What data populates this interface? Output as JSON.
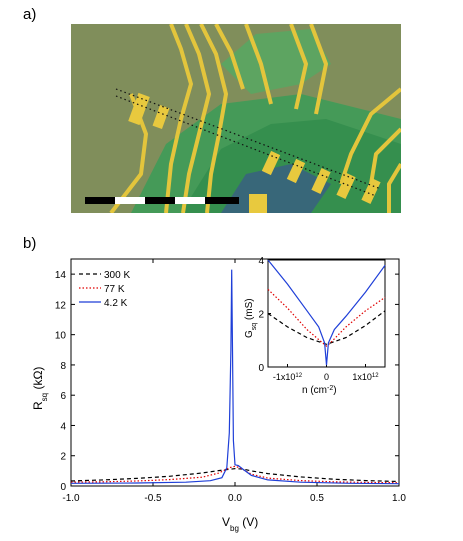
{
  "panels": {
    "a": "a)",
    "b": "b)"
  },
  "colors": {
    "substrate": "#7b8a56",
    "flake_green": "#3fa85a",
    "gold": "#e0c23c",
    "curve_300K": "#000000",
    "curve_77K": "#e00000",
    "curve_42K": "#1f3fd8"
  },
  "chart_data": [
    {
      "type": "line",
      "title": "",
      "xlabel": "V_bg (V)",
      "ylabel": "R_sq (kΩ)",
      "xlim": [
        -1.0,
        1.0
      ],
      "ylim": [
        0,
        15
      ],
      "x_ticks": [
        "-1.0",
        "-0.5",
        "0.0",
        "0.5",
        "1.0"
      ],
      "y_ticks": [
        "0",
        "2",
        "4",
        "6",
        "8",
        "10",
        "12",
        "14"
      ],
      "legend": {
        "placement": "top-left",
        "entries": [
          "300 K",
          "77 K",
          "4.2 K"
        ]
      },
      "series": [
        {
          "name": "300 K",
          "style": "dashed",
          "x": [
            -1.0,
            -0.8,
            -0.6,
            -0.4,
            -0.2,
            -0.1,
            0.0,
            0.05,
            0.1,
            0.2,
            0.4,
            0.6,
            0.8,
            1.0
          ],
          "y": [
            0.33,
            0.4,
            0.5,
            0.64,
            0.86,
            1.02,
            1.15,
            1.12,
            1.0,
            0.82,
            0.6,
            0.45,
            0.36,
            0.3
          ]
        },
        {
          "name": "77 K",
          "style": "dotted",
          "x": [
            -1.0,
            -0.8,
            -0.6,
            -0.4,
            -0.2,
            -0.1,
            -0.03,
            0.0,
            0.03,
            0.1,
            0.2,
            0.4,
            0.6,
            0.8,
            1.0
          ],
          "y": [
            0.25,
            0.28,
            0.33,
            0.42,
            0.58,
            0.85,
            1.22,
            1.3,
            1.2,
            0.78,
            0.52,
            0.36,
            0.28,
            0.24,
            0.22
          ]
        },
        {
          "name": "4.2 K",
          "style": "solid",
          "x": [
            -1.0,
            -0.6,
            -0.3,
            -0.15,
            -0.08,
            -0.05,
            -0.035,
            -0.025,
            -0.02,
            -0.015,
            -0.01,
            0.0,
            0.02,
            0.05,
            0.1,
            0.2,
            0.4,
            0.7,
            1.0
          ],
          "y": [
            0.18,
            0.2,
            0.25,
            0.35,
            0.55,
            1.2,
            3.5,
            9.0,
            14.3,
            9.0,
            3.0,
            1.4,
            1.35,
            1.1,
            0.7,
            0.4,
            0.25,
            0.18,
            0.15
          ]
        }
      ]
    },
    {
      "type": "line",
      "title": "",
      "xlabel": "n (cm^-2)",
      "ylabel": "G_sq (mS)",
      "xlim": [
        -1500000000000.0,
        1500000000000.0
      ],
      "ylim": [
        0,
        4
      ],
      "x_ticks": [
        "-1x10^12",
        "0",
        "1x10^12"
      ],
      "y_ticks": [
        "0",
        "2",
        "4"
      ],
      "series": [
        {
          "name": "300 K",
          "style": "dashed",
          "x": [
            -1500000000000.0,
            -1000000000000.0,
            -500000000000.0,
            0,
            500000000000.0,
            1000000000000.0,
            1500000000000.0
          ],
          "y": [
            2.0,
            1.5,
            1.1,
            0.85,
            1.1,
            1.55,
            2.1
          ]
        },
        {
          "name": "77 K",
          "style": "dotted",
          "x": [
            -1500000000000.0,
            -1000000000000.0,
            -500000000000.0,
            -100000000000.0,
            0,
            100000000000.0,
            500000000000.0,
            1000000000000.0,
            1500000000000.0
          ],
          "y": [
            2.9,
            2.2,
            1.4,
            0.9,
            0.78,
            0.9,
            1.5,
            2.1,
            2.6
          ]
        },
        {
          "name": "4.2 K",
          "style": "solid",
          "x": [
            -1500000000000.0,
            -1000000000000.0,
            -500000000000.0,
            -200000000000.0,
            -50000000000.0,
            0,
            50000000000.0,
            200000000000.0,
            500000000000.0,
            1000000000000.0,
            1500000000000.0
          ],
          "y": [
            4.0,
            3.1,
            2.1,
            1.5,
            0.9,
            0.07,
            0.9,
            1.4,
            1.9,
            2.8,
            3.8
          ]
        }
      ]
    }
  ]
}
